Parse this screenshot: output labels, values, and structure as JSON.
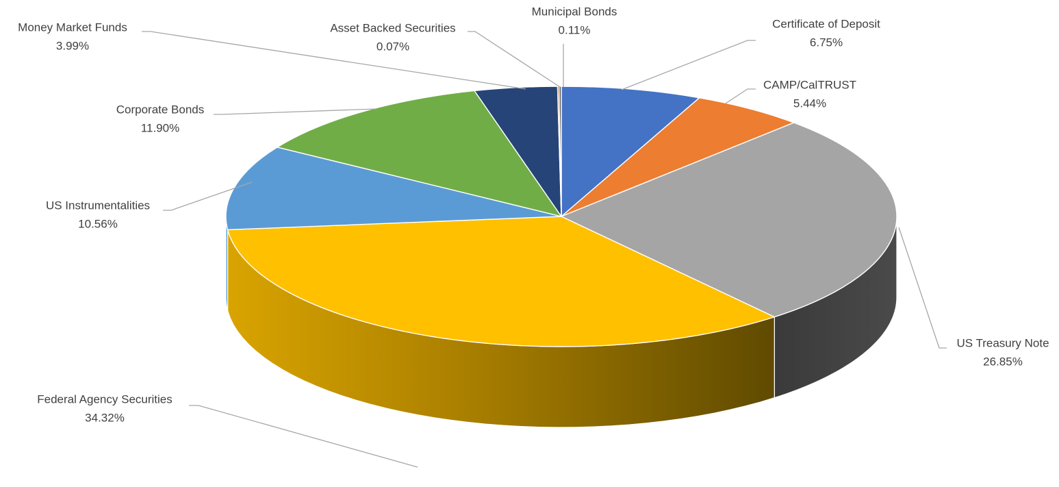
{
  "chart_data": {
    "type": "pie",
    "title": "",
    "unit": "%",
    "slices": [
      {
        "label": "Certificate of Deposit",
        "value": 6.75,
        "value_label": "6.75%",
        "color": "#4472C4"
      },
      {
        "label": "CAMP/CalTRUST",
        "value": 5.44,
        "value_label": "5.44%",
        "color": "#ED7D31"
      },
      {
        "label": "US Treasury Note",
        "value": 26.85,
        "value_label": "26.85%",
        "color": "#A5A5A5"
      },
      {
        "label": "Federal Agency Securities",
        "value": 34.32,
        "value_label": "34.32%",
        "color": "#FFC000"
      },
      {
        "label": "US Instrumentalities",
        "value": 10.56,
        "value_label": "10.56%",
        "color": "#5B9BD5"
      },
      {
        "label": "Corporate Bonds",
        "value": 11.9,
        "value_label": "11.90%",
        "color": "#70AD47"
      },
      {
        "label": "Money Market Funds",
        "value": 3.99,
        "value_label": "3.99%",
        "color": "#264478"
      },
      {
        "label": "Asset Backed Securities",
        "value": 0.07,
        "value_label": "0.07%",
        "color": "#9E480E"
      },
      {
        "label": "Municipal Bonds",
        "value": 0.11,
        "value_label": "0.11%",
        "color": "#636363"
      }
    ],
    "legend": "none",
    "style": "3d-pie",
    "data_labels": "outside-with-leader-lines"
  }
}
